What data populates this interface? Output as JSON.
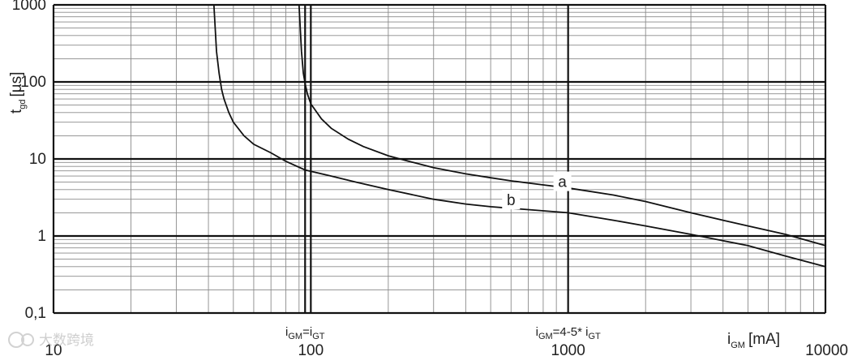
{
  "chart_data": {
    "type": "line",
    "x_scale": "log",
    "y_scale": "log",
    "xlim": [
      10,
      10000
    ],
    "ylim": [
      0.1,
      1000
    ],
    "grid": true,
    "xlabel": {
      "var": "i",
      "sub": "GM",
      "unit": "[mA]"
    },
    "ylabel": {
      "var": "t",
      "sub": "gd",
      "unit": "[µs]"
    },
    "x_ticks": [
      {
        "value": 10,
        "label": "10"
      },
      {
        "value": 100,
        "label": "100"
      },
      {
        "value": 1000,
        "label": "1000"
      },
      {
        "value": 10000,
        "label": "10000"
      }
    ],
    "y_ticks": [
      {
        "value": 1000,
        "label": "1000"
      },
      {
        "value": 100,
        "label": "100"
      },
      {
        "value": 10,
        "label": "10"
      },
      {
        "value": 1,
        "label": "1"
      },
      {
        "value": 0.1,
        "label": "0,1"
      }
    ],
    "annotations": {
      "igt": {
        "x": 95,
        "p1": "i",
        "s1": "GM",
        "p2": "=i",
        "s2": "GT"
      },
      "igm45": {
        "x": 1000,
        "p1": "i",
        "s1": "GM",
        "p2": "=4-5* i",
        "s2": "GT"
      }
    },
    "series": [
      {
        "name": "a",
        "label_at": {
          "x": 950,
          "y": 5.0
        },
        "points": [
          [
            90,
            1000
          ],
          [
            91,
            500
          ],
          [
            92,
            250
          ],
          [
            93.5,
            130
          ],
          [
            95,
            95
          ],
          [
            97,
            70
          ],
          [
            100,
            52
          ],
          [
            110,
            33
          ],
          [
            120,
            25
          ],
          [
            140,
            18
          ],
          [
            160,
            14.5
          ],
          [
            200,
            11
          ],
          [
            250,
            9
          ],
          [
            300,
            7.7
          ],
          [
            400,
            6.4
          ],
          [
            500,
            5.7
          ],
          [
            600,
            5.2
          ],
          [
            800,
            4.6
          ],
          [
            1000,
            4.2
          ],
          [
            1500,
            3.4
          ],
          [
            2000,
            2.8
          ],
          [
            3000,
            2.0
          ],
          [
            4000,
            1.6
          ],
          [
            5000,
            1.35
          ],
          [
            7000,
            1.05
          ],
          [
            10000,
            0.75
          ]
        ]
      },
      {
        "name": "b",
        "label_at": {
          "x": 600,
          "y": 2.9
        },
        "points": [
          [
            42,
            1000
          ],
          [
            42.5,
            500
          ],
          [
            43,
            250
          ],
          [
            44,
            130
          ],
          [
            45,
            80
          ],
          [
            46,
            60
          ],
          [
            48,
            40
          ],
          [
            50,
            30
          ],
          [
            55,
            20
          ],
          [
            60,
            15.5
          ],
          [
            70,
            12
          ],
          [
            80,
            9.3
          ],
          [
            95,
            7.2
          ],
          [
            120,
            6.0
          ],
          [
            150,
            5.0
          ],
          [
            200,
            4.0
          ],
          [
            300,
            3.0
          ],
          [
            400,
            2.6
          ],
          [
            500,
            2.4
          ],
          [
            700,
            2.2
          ],
          [
            1000,
            2.0
          ],
          [
            1500,
            1.6
          ],
          [
            2000,
            1.35
          ],
          [
            3000,
            1.05
          ],
          [
            5000,
            0.75
          ],
          [
            7000,
            0.55
          ],
          [
            10000,
            0.4
          ]
        ]
      }
    ]
  },
  "watermark": {
    "text": "大数跨境"
  }
}
